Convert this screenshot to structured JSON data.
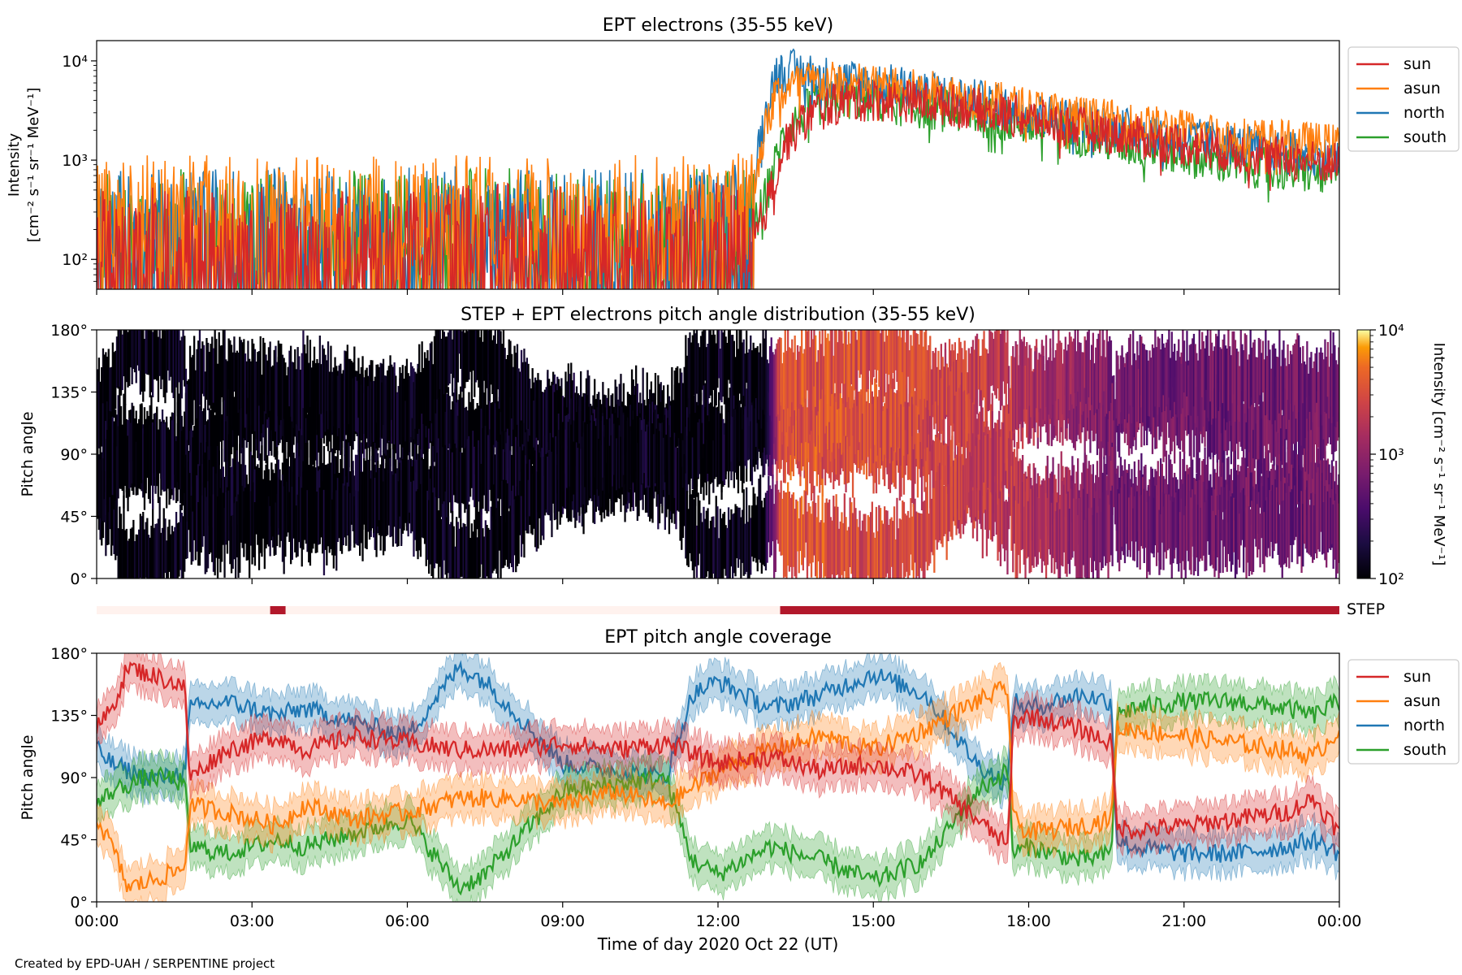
{
  "credit": "Created by EPD-UAH / SERPENTINE project",
  "colors": {
    "sun": "#d62728",
    "asun": "#ff7f0e",
    "north": "#1f77b4",
    "south": "#2ca02c"
  },
  "chart_data": [
    {
      "id": "intensity",
      "type": "line",
      "title": "EPT electrons (35-55 keV)",
      "ylabel": [
        "Intensity",
        "[cm⁻² s⁻¹ sr⁻¹ MeV⁻¹]"
      ],
      "yscale": "log",
      "ylim": [
        50,
        16000
      ],
      "xlim": [
        0,
        24
      ],
      "yticks": [
        {
          "value": 100,
          "label": "10²"
        },
        {
          "value": 1000,
          "label": "10³"
        },
        {
          "value": 10000,
          "label": "10⁴"
        }
      ],
      "legend": "top-right (outside)",
      "series": [
        {
          "name": "sun",
          "x": [
            0,
            2,
            4,
            6,
            8,
            10,
            12,
            12.6,
            12.9,
            13.3,
            13.8,
            14.5,
            15.5,
            16.5,
            18,
            20,
            22,
            24
          ],
          "y": [
            100,
            105,
            100,
            100,
            105,
            100,
            105,
            110,
            300,
            1500,
            3000,
            4000,
            4000,
            3600,
            2600,
            1700,
            1200,
            900
          ]
        },
        {
          "name": "asun",
          "x": [
            0,
            2,
            4,
            6,
            8,
            10,
            12,
            12.6,
            12.8,
            13.1,
            13.6,
            14.5,
            15.5,
            16.5,
            18,
            20,
            22,
            24
          ],
          "y": [
            190,
            210,
            200,
            200,
            210,
            200,
            215,
            230,
            1200,
            4500,
            6000,
            6000,
            5200,
            4600,
            3300,
            2300,
            1700,
            1400
          ]
        },
        {
          "name": "north",
          "x": [
            0,
            2,
            4,
            6,
            8,
            10,
            12,
            12.6,
            12.8,
            13.1,
            13.5,
            14.3,
            15.5,
            16.5,
            18,
            20,
            22,
            24
          ],
          "y": [
            150,
            160,
            150,
            150,
            160,
            150,
            160,
            170,
            1500,
            7500,
            8000,
            6500,
            5500,
            4500,
            3000,
            2000,
            1400,
            1000
          ]
        },
        {
          "name": "south",
          "x": [
            0,
            2,
            4,
            6,
            8,
            10,
            12,
            12.6,
            12.9,
            13.3,
            13.8,
            14.5,
            15.5,
            16.5,
            18,
            20,
            22,
            24
          ],
          "y": [
            140,
            150,
            140,
            140,
            150,
            140,
            150,
            160,
            400,
            2000,
            3500,
            4200,
            3600,
            3100,
            2300,
            1400,
            900,
            700
          ]
        }
      ]
    },
    {
      "id": "pad",
      "type": "heatmap",
      "title": "STEP + EPT electrons pitch angle distribution (35-55 keV)",
      "ylabel": "Pitch angle",
      "xlim": [
        0,
        24
      ],
      "ylim": [
        0,
        180
      ],
      "yticks": [
        {
          "value": 0,
          "label": "0°"
        },
        {
          "value": 45,
          "label": "45°"
        },
        {
          "value": 90,
          "label": "90°"
        },
        {
          "value": 135,
          "label": "135°"
        },
        {
          "value": 180,
          "label": "180°"
        }
      ],
      "colorbar": {
        "label": "Intensity  [cm⁻² s⁻¹ sr⁻¹ MeV⁻¹]",
        "scale": "log",
        "range": [
          100,
          10000
        ],
        "ticks": [
          {
            "value": 100,
            "label": "10²"
          },
          {
            "value": 1000,
            "label": "10³"
          },
          {
            "value": 10000,
            "label": "10⁴"
          }
        ]
      },
      "intensity_profile": {
        "x": [
          0,
          6,
          12.9,
          13.2,
          15,
          16,
          17.6,
          19.6,
          21,
          24
        ],
        "y": [
          110,
          120,
          130,
          3500,
          3000,
          2600,
          2000,
          700,
          600,
          600
        ]
      }
    },
    {
      "id": "step",
      "type": "bar",
      "label": "STEP",
      "segments": [
        {
          "start": 0,
          "end": 3.35,
          "state": "off",
          "color": "#fff2ee"
        },
        {
          "start": 3.35,
          "end": 3.65,
          "state": "on",
          "color": "#b2182b"
        },
        {
          "start": 3.65,
          "end": 13.2,
          "state": "off",
          "color": "#fff2ee"
        },
        {
          "start": 13.2,
          "end": 24,
          "state": "on",
          "color": "#b2182b"
        }
      ]
    },
    {
      "id": "coverage",
      "type": "line",
      "title": "EPT pitch angle coverage",
      "ylabel": "Pitch angle",
      "xlabel": "Time of day 2020 Oct 22 (UT)",
      "xlim": [
        0,
        24
      ],
      "ylim": [
        0,
        180
      ],
      "xticks": [
        {
          "value": 0,
          "label": "00:00"
        },
        {
          "value": 3,
          "label": "03:00"
        },
        {
          "value": 6,
          "label": "06:00"
        },
        {
          "value": 9,
          "label": "09:00"
        },
        {
          "value": 12,
          "label": "12:00"
        },
        {
          "value": 15,
          "label": "15:00"
        },
        {
          "value": 18,
          "label": "18:00"
        },
        {
          "value": 21,
          "label": "21:00"
        },
        {
          "value": 24,
          "label": "00:00"
        }
      ],
      "yticks": [
        {
          "value": 0,
          "label": "0°"
        },
        {
          "value": 45,
          "label": "45°"
        },
        {
          "value": 90,
          "label": "90°"
        },
        {
          "value": 135,
          "label": "135°"
        },
        {
          "value": 180,
          "label": "180°"
        }
      ],
      "legend": "top-right (outside)",
      "band_halfwidth_deg": 14,
      "series": [
        {
          "name": "sun",
          "x": [
            0,
            0.3,
            0.6,
            1,
            1.4,
            1.7,
            1.8,
            2.5,
            3,
            3.5,
            4,
            5,
            6,
            7,
            8,
            9,
            10,
            11,
            12,
            13,
            14,
            15,
            16,
            17,
            17.6,
            17.7,
            18,
            19,
            19.6,
            19.7,
            20,
            21,
            22,
            23,
            23.5,
            24
          ],
          "y": [
            125,
            140,
            170,
            165,
            160,
            155,
            90,
            110,
            115,
            120,
            110,
            120,
            115,
            110,
            110,
            115,
            110,
            115,
            100,
            105,
            95,
            100,
            90,
            60,
            40,
            130,
            135,
            125,
            115,
            55,
            52,
            55,
            60,
            65,
            75,
            50
          ]
        },
        {
          "name": "asun",
          "x": [
            0,
            0.3,
            0.6,
            1,
            1.4,
            1.7,
            1.8,
            2.5,
            3,
            3.5,
            4,
            5,
            6,
            7,
            8,
            9,
            10,
            11,
            12,
            13,
            14,
            15,
            16,
            17,
            17.6,
            17.7,
            18,
            19,
            19.6,
            19.7,
            20,
            21,
            22,
            23,
            23.5,
            24
          ],
          "y": [
            60,
            40,
            10,
            15,
            20,
            25,
            70,
            65,
            60,
            55,
            70,
            60,
            65,
            75,
            75,
            70,
            80,
            70,
            95,
            110,
            120,
            110,
            125,
            145,
            155,
            60,
            50,
            55,
            60,
            125,
            125,
            120,
            115,
            110,
            105,
            125
          ]
        },
        {
          "name": "north",
          "x": [
            0,
            0.3,
            0.6,
            1,
            1.4,
            1.7,
            1.8,
            2.5,
            3,
            3.5,
            4,
            5,
            6,
            7,
            7.5,
            8,
            9,
            10,
            11,
            11.5,
            12,
            13,
            14,
            15,
            16,
            17,
            17.6,
            17.7,
            18,
            19,
            19.6,
            19.7,
            20,
            21,
            22,
            23,
            23.5,
            24
          ],
          "y": [
            110,
            100,
            95,
            90,
            90,
            95,
            140,
            145,
            140,
            135,
            140,
            130,
            120,
            170,
            160,
            140,
            100,
            95,
            90,
            150,
            160,
            140,
            150,
            165,
            150,
            100,
            85,
            145,
            140,
            150,
            145,
            45,
            40,
            35,
            35,
            40,
            45,
            35
          ]
        },
        {
          "name": "south",
          "x": [
            0,
            0.3,
            0.6,
            1,
            1.4,
            1.7,
            1.8,
            2.5,
            3,
            3.5,
            4,
            5,
            6,
            7,
            7.5,
            8,
            9,
            10,
            11,
            11.5,
            12,
            13,
            14,
            15,
            16,
            17,
            17.6,
            17.7,
            18,
            19,
            19.6,
            19.7,
            20,
            21,
            22,
            23,
            23.5,
            24
          ],
          "y": [
            70,
            80,
            85,
            90,
            90,
            85,
            40,
            35,
            40,
            45,
            40,
            50,
            60,
            10,
            20,
            40,
            80,
            85,
            90,
            30,
            20,
            40,
            30,
            15,
            30,
            80,
            95,
            35,
            40,
            30,
            35,
            135,
            140,
            145,
            145,
            140,
            135,
            145
          ]
        }
      ]
    }
  ]
}
